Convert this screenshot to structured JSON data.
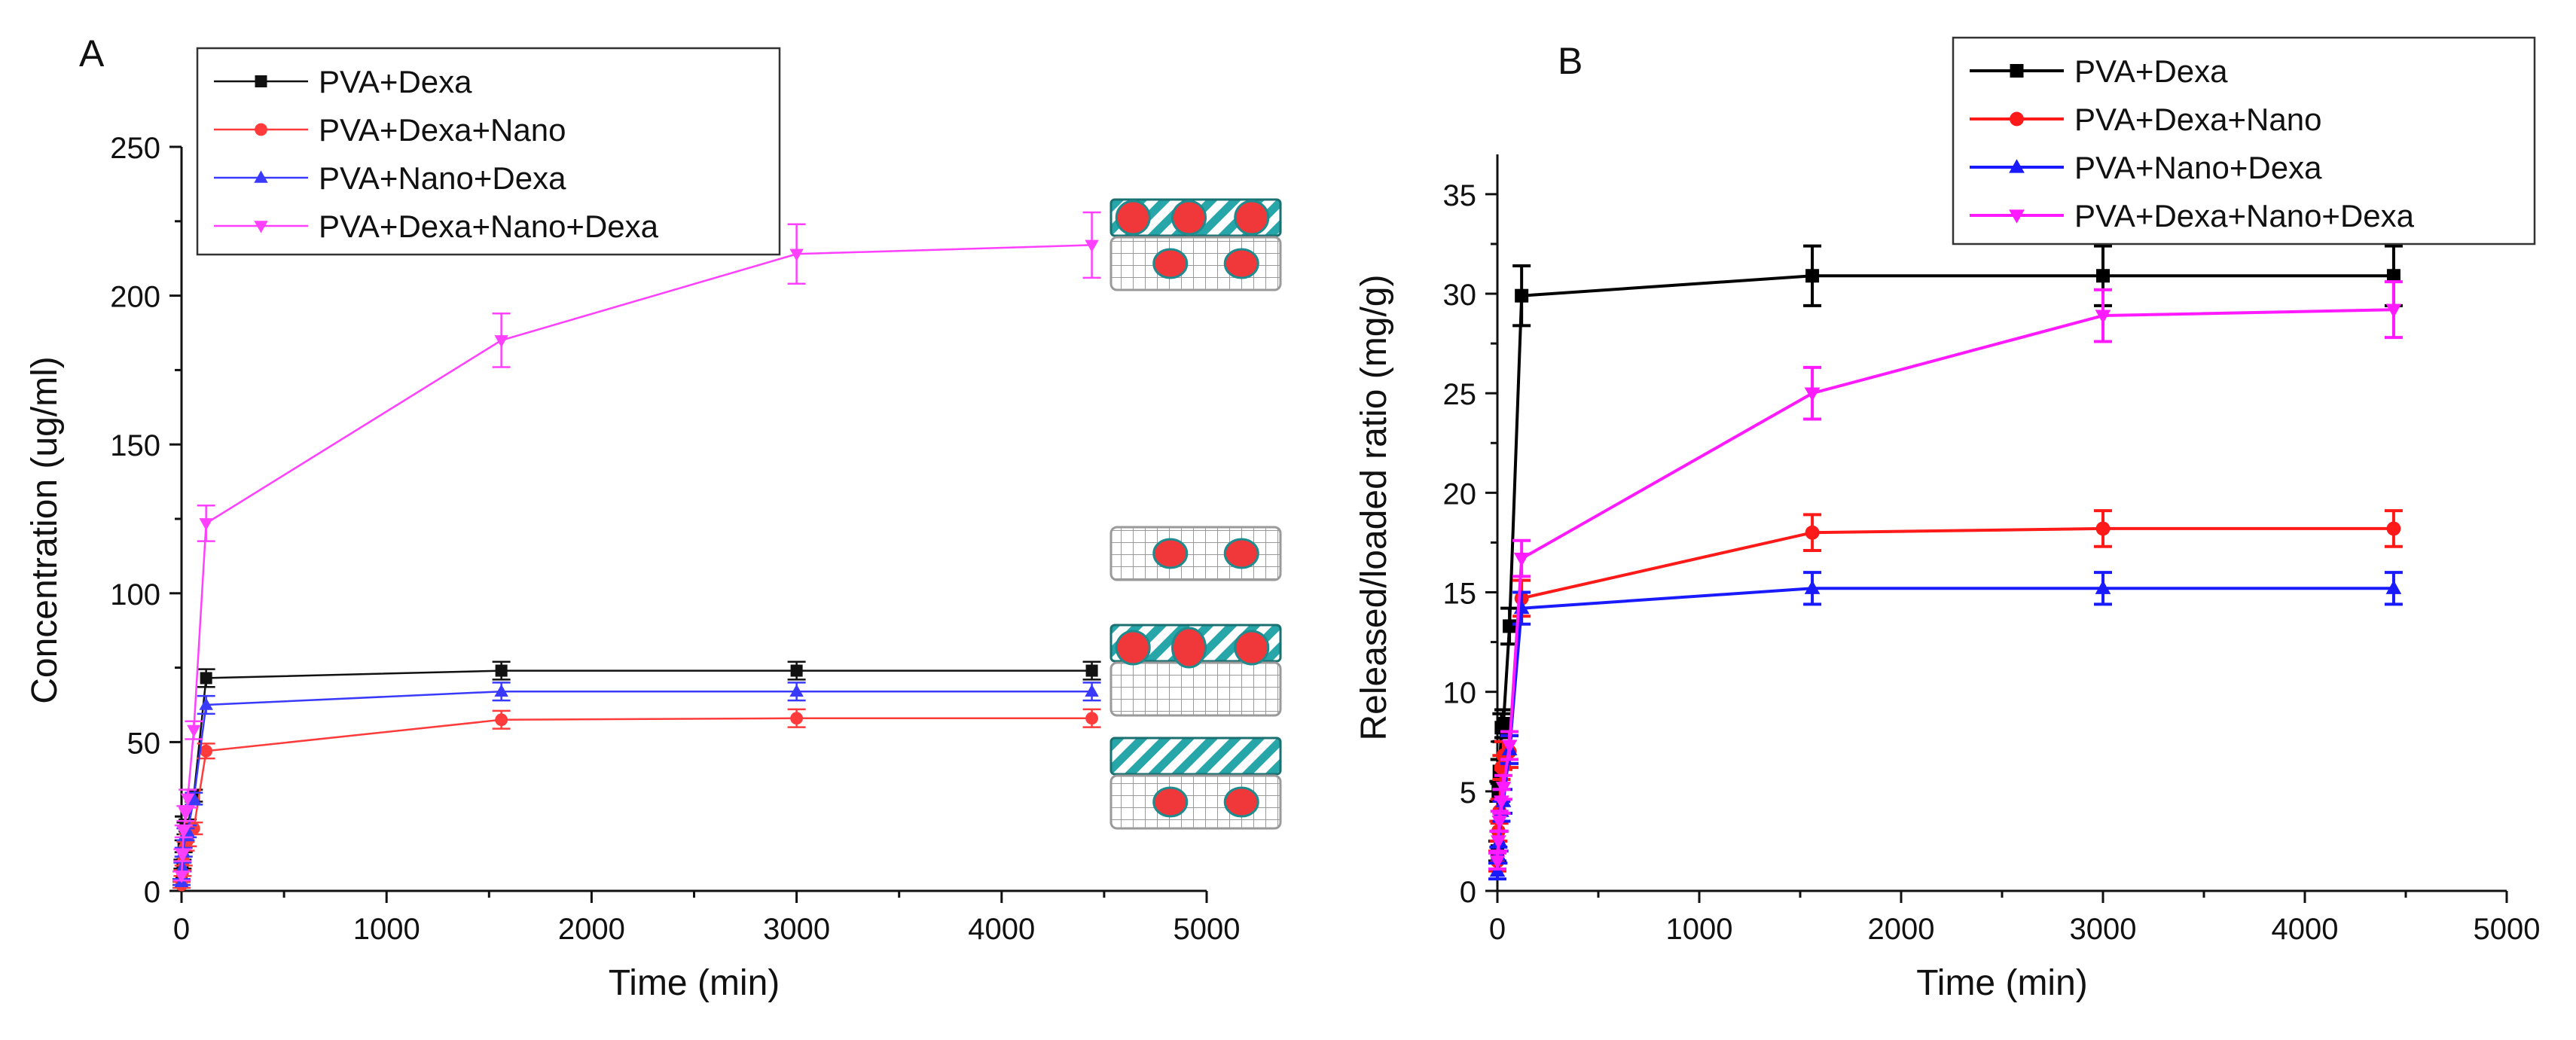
{
  "chart_data": [
    {
      "panel_label": "A",
      "type": "line",
      "xlabel": "Time (min)",
      "ylabel": "Concentration (ug/ml)",
      "xlim": [
        0,
        5000
      ],
      "ylim": [
        0,
        250
      ],
      "xticks": [
        "0",
        "1000",
        "2000",
        "3000",
        "4000",
        "5000"
      ],
      "yticks": [
        "0",
        "50",
        "100",
        "150",
        "200",
        "250"
      ],
      "legend_position": "top-left",
      "grid": false,
      "series": [
        {
          "name": "PVA+Dexa",
          "color": "#111111",
          "marker": "square",
          "x": [
            0,
            5,
            10,
            20,
            30,
            60,
            120,
            1560,
            3000,
            4440
          ],
          "y": [
            3,
            9,
            15,
            21,
            22,
            32,
            71.5,
            74,
            74,
            74
          ],
          "err": [
            1,
            1.5,
            2,
            2,
            2,
            2,
            3,
            3,
            3,
            3
          ]
        },
        {
          "name": "PVA+Dexa+Nano",
          "color": "#ff3b3b",
          "marker": "circle",
          "x": [
            0,
            5,
            10,
            20,
            30,
            60,
            120,
            1560,
            3000,
            4440
          ],
          "y": [
            2,
            6,
            10,
            15,
            17,
            21,
            47,
            57.5,
            58,
            58
          ],
          "err": [
            1,
            1,
            1.5,
            1.5,
            2,
            2,
            2.5,
            3,
            3,
            3
          ]
        },
        {
          "name": "PVA+Nano+Dexa",
          "color": "#3a3aff",
          "marker": "triangle-up",
          "x": [
            0,
            5,
            10,
            20,
            30,
            60,
            120,
            1560,
            3000,
            4440
          ],
          "y": [
            3,
            8,
            13,
            19,
            20,
            31,
            62.5,
            67,
            67,
            67
          ],
          "err": [
            1,
            1.5,
            1.5,
            2,
            2,
            2,
            3,
            3,
            3,
            3
          ]
        },
        {
          "name": "PVA+Dexa+Nano+Dexa",
          "color": "#ff40ff",
          "marker": "triangle-down",
          "x": [
            0,
            5,
            10,
            20,
            30,
            60,
            120,
            1560,
            3000,
            4440
          ],
          "y": [
            5,
            12,
            20,
            26,
            31,
            54,
            123.5,
            185,
            214,
            217
          ],
          "err": [
            1.5,
            2,
            2,
            2.5,
            3,
            3,
            6,
            9,
            10,
            11
          ]
        }
      ]
    },
    {
      "panel_label": "B",
      "type": "line",
      "xlabel": "Time (min)",
      "ylabel": "Released/loaded ratio (mg/g)",
      "xlim": [
        0,
        5000
      ],
      "ylim": [
        0,
        37
      ],
      "xticks": [
        "0",
        "1000",
        "2000",
        "3000",
        "4000",
        "5000"
      ],
      "yticks": [
        "0",
        "5",
        "10",
        "15",
        "20",
        "25",
        "30",
        "35"
      ],
      "legend_position": "top-right",
      "grid": false,
      "series": [
        {
          "name": "PVA+Dexa",
          "color": "#000000",
          "marker": "square",
          "x": [
            0,
            5,
            10,
            20,
            30,
            60,
            120,
            1560,
            3000,
            4440
          ],
          "y": [
            2,
            5,
            6,
            8.2,
            8.4,
            13.3,
            29.9,
            30.9,
            30.9,
            30.9
          ],
          "err": [
            0.5,
            0.5,
            0.6,
            0.7,
            0.7,
            0.9,
            1.5,
            1.5,
            1.5,
            1.5
          ]
        },
        {
          "name": "PVA+Dexa+Nano",
          "color": "#ff1a1a",
          "marker": "circle",
          "x": [
            0,
            5,
            10,
            20,
            30,
            60,
            120,
            1560,
            3000,
            4440
          ],
          "y": [
            1.5,
            3,
            4,
            6.2,
            6.8,
            7,
            14.7,
            18,
            18.2,
            18.2
          ],
          "err": [
            0.5,
            0.5,
            0.6,
            0.6,
            0.7,
            0.8,
            0.9,
            0.9,
            0.9,
            0.9
          ]
        },
        {
          "name": "PVA+Nano+Dexa",
          "color": "#1a1aff",
          "marker": "triangle-up",
          "x": [
            0,
            5,
            10,
            20,
            30,
            60,
            120,
            1560,
            3000,
            4440
          ],
          "y": [
            1,
            1.8,
            2.5,
            4,
            4.5,
            7.1,
            14.2,
            15.2,
            15.2,
            15.2
          ],
          "err": [
            0.4,
            0.4,
            0.5,
            0.5,
            0.6,
            0.7,
            0.8,
            0.8,
            0.8,
            0.8
          ]
        },
        {
          "name": "PVA+Dexa+Nano+Dexa",
          "color": "#ff1aff",
          "marker": "triangle-down",
          "x": [
            0,
            5,
            10,
            20,
            30,
            60,
            120,
            1560,
            3000,
            4440
          ],
          "y": [
            1.5,
            2.5,
            3.5,
            4.5,
            5.2,
            7.3,
            16.7,
            25,
            28.9,
            29.2
          ],
          "err": [
            0.4,
            0.5,
            0.5,
            0.6,
            0.6,
            0.7,
            0.9,
            1.3,
            1.3,
            1.4
          ]
        }
      ]
    }
  ],
  "schematic_icons": [
    {
      "name": "PVA+Dexa+Nano+Dexa",
      "hatched_top_layer": true,
      "dots_in_top": 3,
      "dots_in_grid": 2
    },
    {
      "name": "PVA+Dexa",
      "hatched_top_layer": false,
      "dots_in_top": 0,
      "dots_in_grid": 2
    },
    {
      "name": "PVA+Dexa+Nano",
      "hatched_top_layer": true,
      "dots_in_top": 3,
      "dots_in_grid": 0
    },
    {
      "name": "PVA+Nano+Dexa",
      "hatched_top_layer": true,
      "dots_in_top": 0,
      "dots_in_grid": 2
    }
  ]
}
